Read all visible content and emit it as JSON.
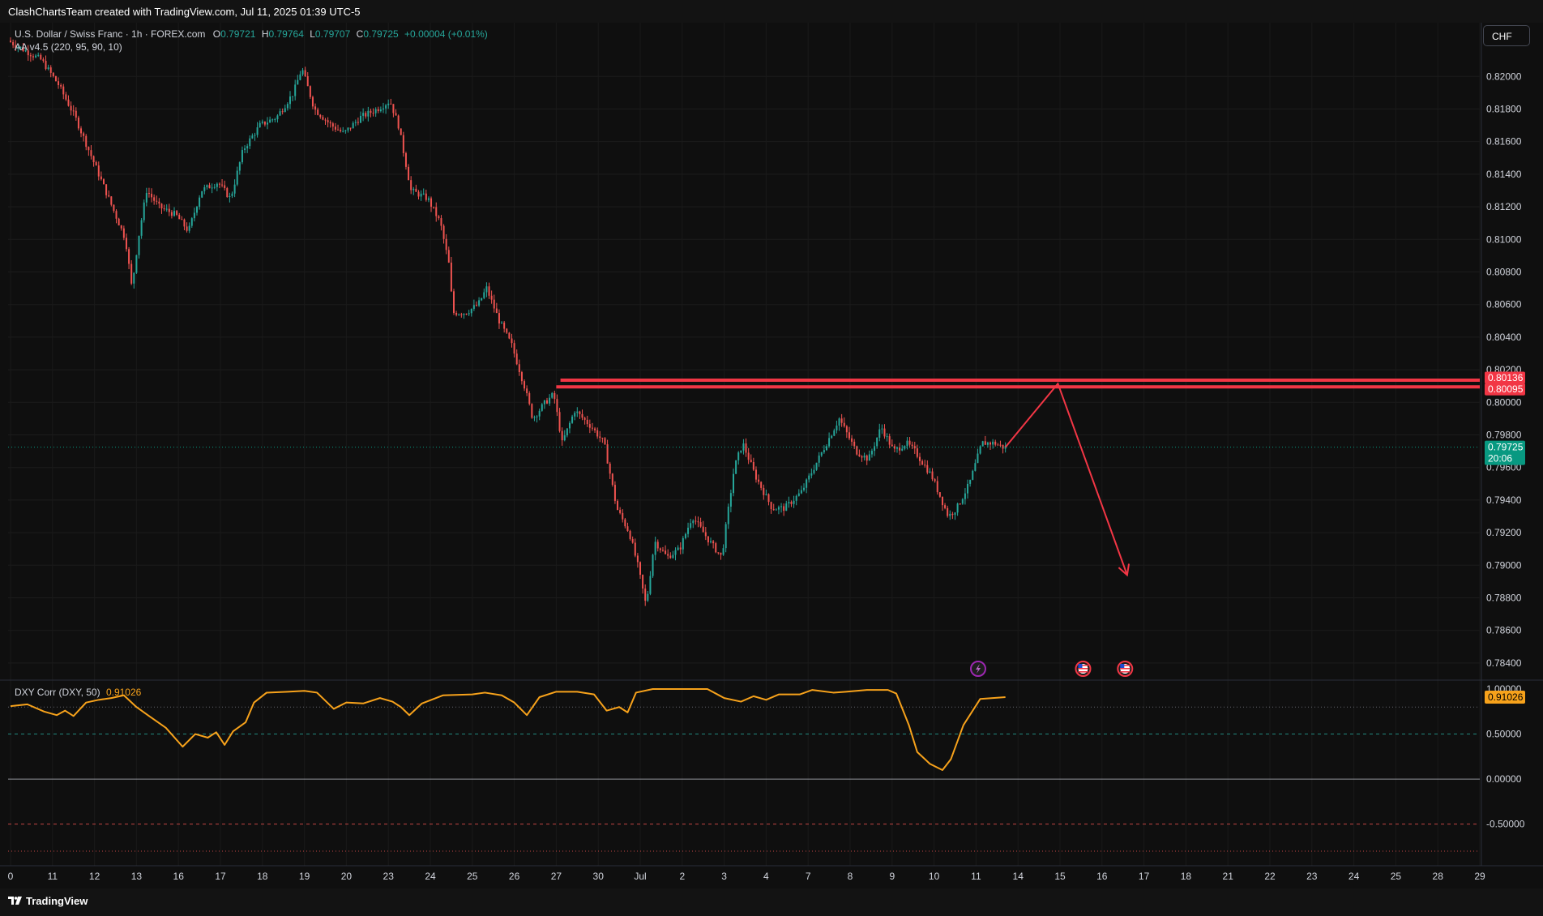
{
  "credit": "ClashChartsTeam created with TradingView.com, Jul 11, 2025 01:39 UTC-5",
  "brand": "TradingView",
  "currency_button": "CHF",
  "main_legend": {
    "symbol": "U.S. Dollar / Swiss Franc · 1h · FOREX.com",
    "open_label": "O",
    "open": "0.79721",
    "high_label": "H",
    "high": "0.79764",
    "low_label": "L",
    "low": "0.79707",
    "close_label": "C",
    "close": "0.79725",
    "change": "+0.00004 (+0.01%)",
    "indicator": "AA v4.5 (220, 95, 90, 10)"
  },
  "corr_legend": {
    "name": "DXY Corr (DXY, 50)",
    "value": "0.91026"
  },
  "price_labels": {
    "resistance_top": "0.80136",
    "resistance_bottom": "0.80095",
    "last_price": "0.79725",
    "countdown": "20:06",
    "corr_last": "0.91026"
  },
  "colors": {
    "up": "#26a69a",
    "down": "#ef5350",
    "resistance": "#f23645",
    "corr_line": "#f7a21b",
    "last_price": "#089981",
    "background": "#0f0f0f"
  },
  "events": [
    {
      "icon": "lightning-event-icon",
      "at": "Jul 11"
    },
    {
      "icon": "us-flag-event-icon",
      "at": "Jul 15"
    },
    {
      "icon": "us-flag-event-icon",
      "at": "Jul 16"
    }
  ],
  "chart_data": [
    {
      "type": "candlestick",
      "title": "U.S. Dollar / Swiss Franc · 1h · FOREX.com",
      "ylabel": "CHF",
      "ylim": [
        0.7832,
        0.8227
      ],
      "y_ticks": [
        "0.82000",
        "0.81800",
        "0.81600",
        "0.81400",
        "0.81200",
        "0.81000",
        "0.80800",
        "0.80600",
        "0.80400",
        "0.80200",
        "0.80000",
        "0.79800",
        "0.79600",
        "0.79400",
        "0.79200",
        "0.79000",
        "0.78800",
        "0.78600",
        "0.78400"
      ],
      "x_ticks": [
        "0",
        "11",
        "12",
        "13",
        "16",
        "17",
        "18",
        "19",
        "20",
        "23",
        "24",
        "25",
        "26",
        "27",
        "30",
        "Jul",
        "2",
        "3",
        "4",
        "7",
        "8",
        "9",
        "10",
        "11",
        "14",
        "15",
        "16",
        "17",
        "18",
        "21",
        "22",
        "23",
        "24",
        "25",
        "28",
        "29"
      ],
      "x_tick_index": [
        0,
        1,
        2,
        3,
        4,
        5,
        6,
        7,
        8,
        9,
        10,
        11,
        12,
        13,
        14,
        15,
        16,
        17,
        18,
        19,
        20,
        21,
        22,
        23,
        24,
        25,
        26,
        27,
        28,
        29,
        30,
        31,
        32,
        33,
        34,
        35
      ],
      "price_path": [
        [
          0,
          0.8222
        ],
        [
          0.8,
          0.821
        ],
        [
          1.2,
          0.8195
        ],
        [
          1.6,
          0.8175
        ],
        [
          2.0,
          0.815
        ],
        [
          2.4,
          0.8125
        ],
        [
          2.8,
          0.81
        ],
        [
          2.95,
          0.807
        ],
        [
          3.1,
          0.81
        ],
        [
          3.3,
          0.813
        ],
        [
          3.6,
          0.812
        ],
        [
          4.0,
          0.8115
        ],
        [
          4.3,
          0.8105
        ],
        [
          4.6,
          0.813
        ],
        [
          5.0,
          0.8135
        ],
        [
          5.3,
          0.8125
        ],
        [
          5.6,
          0.8155
        ],
        [
          6.0,
          0.817
        ],
        [
          6.4,
          0.8175
        ],
        [
          6.8,
          0.819
        ],
        [
          7.0,
          0.8205
        ],
        [
          7.3,
          0.818
        ],
        [
          7.7,
          0.817
        ],
        [
          8.0,
          0.8165
        ],
        [
          8.4,
          0.8175
        ],
        [
          8.8,
          0.818
        ],
        [
          9.1,
          0.8185
        ],
        [
          9.3,
          0.817
        ],
        [
          9.6,
          0.813
        ],
        [
          10.0,
          0.8125
        ],
        [
          10.3,
          0.811
        ],
        [
          10.5,
          0.8085
        ],
        [
          10.6,
          0.8055
        ],
        [
          10.9,
          0.8055
        ],
        [
          11.2,
          0.806
        ],
        [
          11.4,
          0.807
        ],
        [
          11.7,
          0.805
        ],
        [
          12.0,
          0.8035
        ],
        [
          12.3,
          0.801
        ],
        [
          12.5,
          0.799
        ],
        [
          12.8,
          0.8
        ],
        [
          13.0,
          0.8005
        ],
        [
          13.2,
          0.7975
        ],
        [
          13.5,
          0.7995
        ],
        [
          13.9,
          0.7985
        ],
        [
          14.2,
          0.7975
        ],
        [
          14.5,
          0.7935
        ],
        [
          14.8,
          0.792
        ],
        [
          15.0,
          0.79
        ],
        [
          15.2,
          0.7875
        ],
        [
          15.4,
          0.7915
        ],
        [
          15.7,
          0.7905
        ],
        [
          16.0,
          0.791
        ],
        [
          16.3,
          0.793
        ],
        [
          16.7,
          0.7915
        ],
        [
          17.0,
          0.7905
        ],
        [
          17.3,
          0.796
        ],
        [
          17.5,
          0.7975
        ],
        [
          17.8,
          0.7955
        ],
        [
          18.2,
          0.7935
        ],
        [
          18.5,
          0.7935
        ],
        [
          18.9,
          0.7945
        ],
        [
          19.2,
          0.796
        ],
        [
          19.5,
          0.7975
        ],
        [
          19.8,
          0.799
        ],
        [
          20.2,
          0.797
        ],
        [
          20.5,
          0.7965
        ],
        [
          20.8,
          0.7985
        ],
        [
          21.1,
          0.797
        ],
        [
          21.4,
          0.7975
        ],
        [
          21.6,
          0.797
        ],
        [
          22.0,
          0.7955
        ],
        [
          22.4,
          0.793
        ],
        [
          22.6,
          0.7935
        ],
        [
          22.9,
          0.795
        ],
        [
          23.2,
          0.7975
        ],
        [
          23.5,
          0.7975
        ],
        [
          23.7,
          0.79725
        ]
      ],
      "projection": [
        [
          23.7,
          0.79725
        ],
        [
          24.95,
          0.80115
        ],
        [
          26.6,
          0.7894
        ]
      ],
      "resistance": [
        {
          "from": 13.1,
          "value": 0.80136
        },
        {
          "from": 13.0,
          "value": 0.80095
        }
      ],
      "last": 0.79725
    },
    {
      "type": "line",
      "title": "DXY Corr (DXY, 50)",
      "ylim": [
        -0.8,
        1.0
      ],
      "y_ticks": [
        "1.00000",
        "0.50000",
        "0.00000",
        "-0.50000"
      ],
      "levels": [
        0.8,
        0.5,
        0.0,
        -0.5,
        -0.8
      ],
      "series": [
        {
          "name": "DXY Corr (DXY, 50)",
          "points": [
            [
              0,
              0.81
            ],
            [
              0.4,
              0.83
            ],
            [
              0.8,
              0.75
            ],
            [
              1.1,
              0.71
            ],
            [
              1.3,
              0.76
            ],
            [
              1.5,
              0.7
            ],
            [
              1.8,
              0.85
            ],
            [
              2.1,
              0.88
            ],
            [
              2.4,
              0.9
            ],
            [
              2.7,
              0.93
            ],
            [
              3.0,
              0.8
            ],
            [
              3.3,
              0.7
            ],
            [
              3.7,
              0.57
            ],
            [
              4.1,
              0.36
            ],
            [
              4.4,
              0.5
            ],
            [
              4.7,
              0.46
            ],
            [
              4.9,
              0.52
            ],
            [
              5.1,
              0.38
            ],
            [
              5.3,
              0.53
            ],
            [
              5.6,
              0.63
            ],
            [
              5.8,
              0.85
            ],
            [
              6.1,
              0.96
            ],
            [
              6.6,
              0.97
            ],
            [
              7.0,
              0.98
            ],
            [
              7.3,
              0.96
            ],
            [
              7.7,
              0.78
            ],
            [
              8.0,
              0.85
            ],
            [
              8.4,
              0.84
            ],
            [
              8.8,
              0.9
            ],
            [
              9.1,
              0.86
            ],
            [
              9.3,
              0.8
            ],
            [
              9.5,
              0.71
            ],
            [
              9.8,
              0.84
            ],
            [
              10.3,
              0.93
            ],
            [
              11.0,
              0.94
            ],
            [
              11.3,
              0.96
            ],
            [
              11.7,
              0.93
            ],
            [
              12.0,
              0.85
            ],
            [
              12.3,
              0.71
            ],
            [
              12.6,
              0.91
            ],
            [
              13.0,
              0.97
            ],
            [
              13.5,
              0.97
            ],
            [
              13.9,
              0.94
            ],
            [
              14.2,
              0.76
            ],
            [
              14.5,
              0.8
            ],
            [
              14.7,
              0.74
            ],
            [
              14.9,
              0.96
            ],
            [
              15.3,
              1.0
            ],
            [
              16.0,
              1.0
            ],
            [
              16.6,
              1.0
            ],
            [
              17.0,
              0.9
            ],
            [
              17.4,
              0.86
            ],
            [
              17.7,
              0.92
            ],
            [
              18.0,
              0.88
            ],
            [
              18.3,
              0.94
            ],
            [
              18.8,
              0.94
            ],
            [
              19.1,
              0.99
            ],
            [
              19.6,
              0.96
            ],
            [
              19.9,
              0.97
            ],
            [
              20.4,
              0.99
            ],
            [
              20.9,
              0.99
            ],
            [
              21.1,
              0.95
            ],
            [
              21.4,
              0.6
            ],
            [
              21.6,
              0.3
            ],
            [
              21.9,
              0.17
            ],
            [
              22.2,
              0.1
            ],
            [
              22.4,
              0.22
            ],
            [
              22.7,
              0.6
            ],
            [
              23.1,
              0.89
            ],
            [
              23.7,
              0.91026
            ]
          ]
        }
      ]
    }
  ]
}
